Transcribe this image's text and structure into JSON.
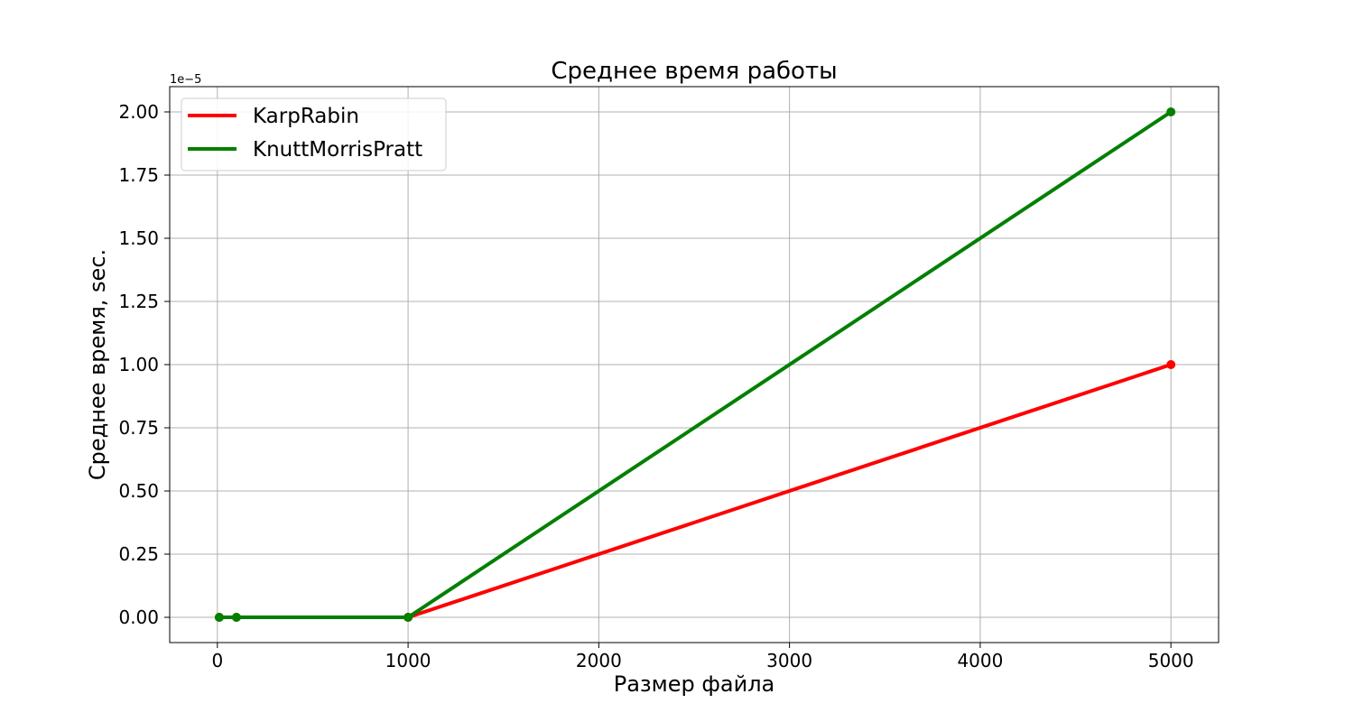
{
  "chart_data": {
    "type": "line",
    "title": "Среднее время работы",
    "xlabel": "Размер файла",
    "ylabel": "Среднее время, sec.",
    "y_offset_label": "1e−5",
    "y_scale_factor": 1e-05,
    "xlim": [
      -250,
      5250
    ],
    "ylim": [
      -0.1,
      2.1
    ],
    "x_ticks": [
      0,
      1000,
      2000,
      3000,
      4000,
      5000
    ],
    "x_tick_labels": [
      "0",
      "1000",
      "2000",
      "3000",
      "4000",
      "5000"
    ],
    "y_ticks": [
      0,
      0.25,
      0.5,
      0.75,
      1.0,
      1.25,
      1.5,
      1.75,
      2.0
    ],
    "y_tick_labels": [
      "0.00",
      "0.25",
      "0.50",
      "0.75",
      "1.00",
      "1.25",
      "1.50",
      "1.75",
      "2.00"
    ],
    "grid": true,
    "legend_position": "top-left",
    "series": [
      {
        "name": "KarpRabin",
        "color": "#ff0000",
        "x": [
          10,
          100,
          1000,
          5000
        ],
        "y": [
          0,
          0,
          0,
          1.0
        ]
      },
      {
        "name": "KnuttMorrisPratt",
        "color": "#008000",
        "x": [
          10,
          100,
          1000,
          5000
        ],
        "y": [
          0,
          0,
          0,
          2.0
        ]
      }
    ]
  }
}
